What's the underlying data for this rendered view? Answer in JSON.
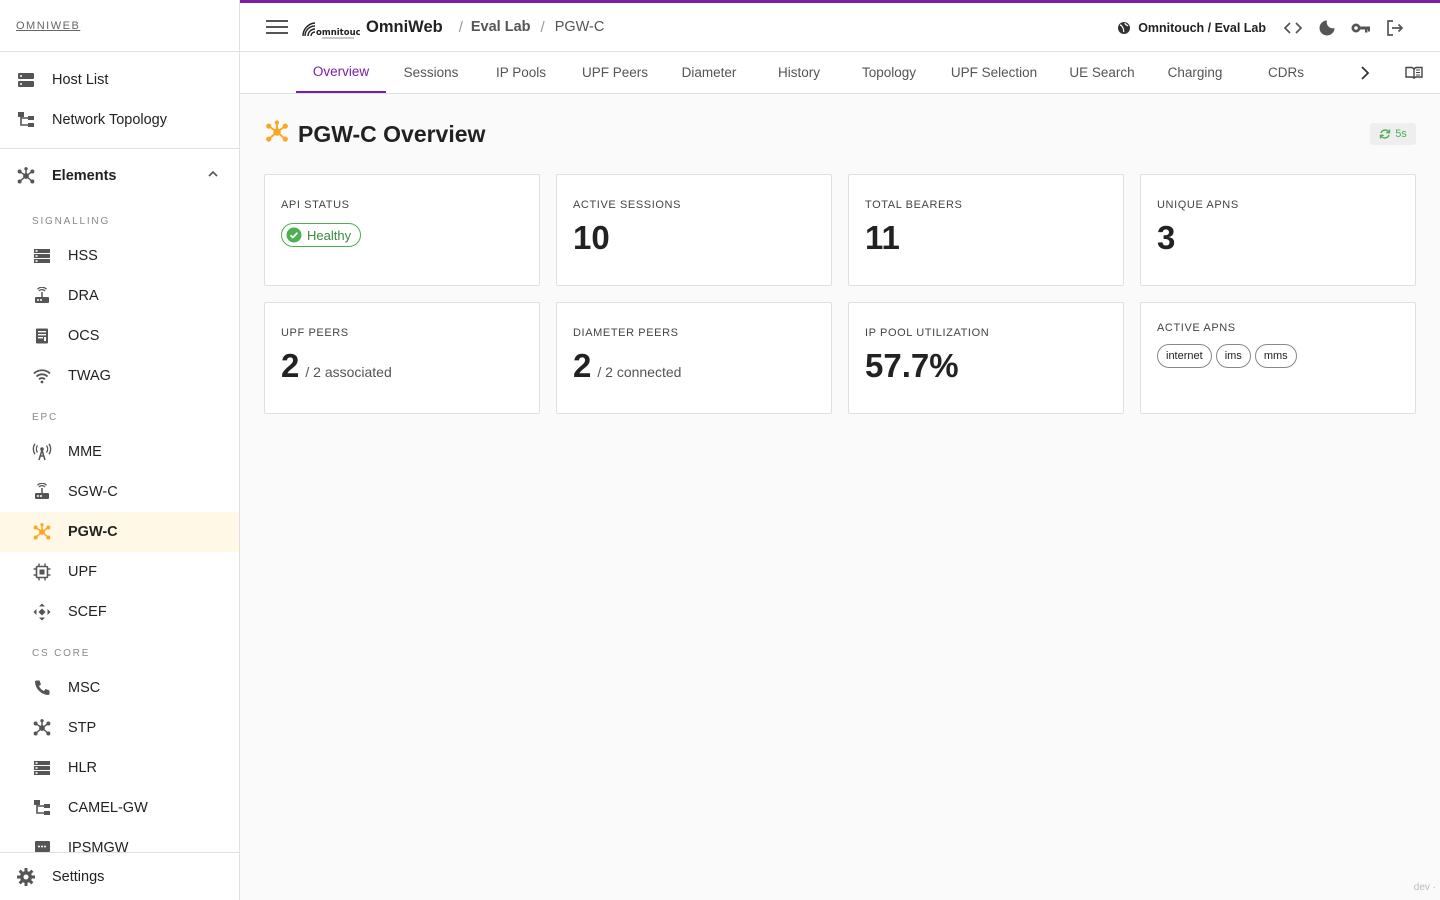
{
  "brand": "OMNIWEB",
  "nav_top": [
    {
      "label": "Host List",
      "icon": "server-icon"
    },
    {
      "label": "Network Topology",
      "icon": "topology-icon"
    }
  ],
  "elements": {
    "label": "Elements",
    "sections": [
      {
        "label": "SIGNALLING",
        "items": [
          "HSS",
          "DRA",
          "OCS",
          "TWAG"
        ]
      },
      {
        "label": "EPC",
        "items": [
          "MME",
          "SGW-C",
          "PGW-C",
          "UPF",
          "SCEF"
        ]
      },
      {
        "label": "CS CORE",
        "items": [
          "MSC",
          "STP",
          "HLR",
          "CAMEL-GW",
          "IPSMGW"
        ]
      }
    ],
    "active": "PGW-C"
  },
  "settings_label": "Settings",
  "topbar": {
    "app_name": "OmniWeb",
    "logo_text": "omnitouch",
    "breadcrumb": [
      "Eval Lab",
      "PGW-C"
    ],
    "tenant": "Omnitouch / Eval Lab"
  },
  "tabs": [
    "Overview",
    "Sessions",
    "IP Pools",
    "UPF Peers",
    "Diameter",
    "History",
    "Topology",
    "UPF Selection",
    "UE Search",
    "Charging",
    "CDRs"
  ],
  "active_tab": "Overview",
  "page": {
    "title": "PGW-C Overview",
    "refresh": "5s"
  },
  "cards": {
    "api_status": {
      "label": "API STATUS",
      "value": "Healthy"
    },
    "active_sessions": {
      "label": "ACTIVE SESSIONS",
      "value": "10"
    },
    "total_bearers": {
      "label": "TOTAL BEARERS",
      "value": "11"
    },
    "unique_apns": {
      "label": "UNIQUE APNS",
      "value": "3"
    },
    "upf_peers": {
      "label": "UPF PEERS",
      "value": "2",
      "suffix": "/ 2 associated"
    },
    "diameter_peers": {
      "label": "DIAMETER PEERS",
      "value": "2",
      "suffix": "/ 2 connected"
    },
    "ip_pool": {
      "label": "IP POOL UTILIZATION",
      "value": "57.7%"
    },
    "active_apns": {
      "label": "ACTIVE APNS",
      "chips": [
        "internet",
        "ims",
        "mms"
      ]
    }
  },
  "footer": "dev ·",
  "colors": {
    "accent": "#7b1fa2",
    "active_icon": "#f9a825",
    "healthy": "#4caf50"
  }
}
